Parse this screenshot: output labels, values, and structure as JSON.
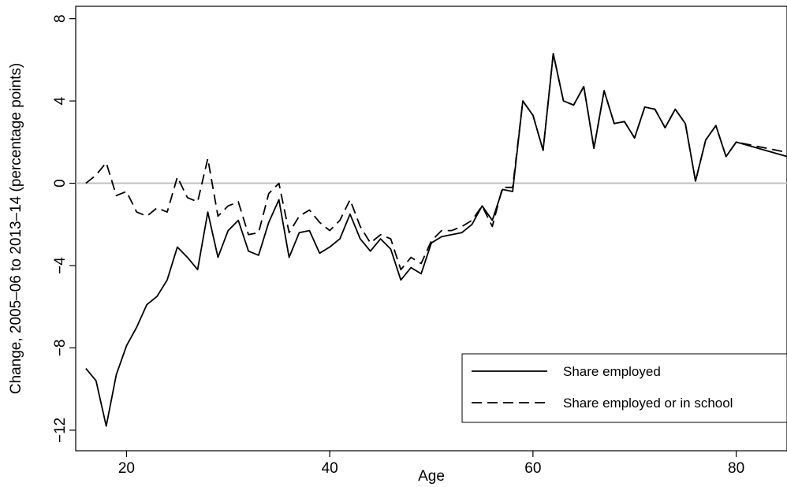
{
  "chart_data": {
    "type": "line",
    "title": "",
    "xlabel": "Age",
    "ylabel": "Change, 2005–06 to 2013–14 (percentage points)",
    "xlim": [
      15,
      85
    ],
    "ylim": [
      -13,
      8.6
    ],
    "xticks": [
      20,
      40,
      60,
      80
    ],
    "yticks": [
      -12,
      -8,
      -4,
      0,
      4,
      8
    ],
    "xtick_labels": [
      "20",
      "40",
      "60",
      "80"
    ],
    "ytick_labels": [
      "−12",
      "−8",
      "−4",
      "0",
      "4",
      "8"
    ],
    "reference_line_y": 0,
    "grid": false,
    "legend_position": "bottom-right",
    "series": [
      {
        "name": "Share employed",
        "style": "solid",
        "color": "#000000",
        "x": [
          16,
          17,
          18,
          19,
          20,
          21,
          22,
          23,
          24,
          25,
          26,
          27,
          28,
          29,
          30,
          31,
          32,
          33,
          34,
          35,
          36,
          37,
          38,
          39,
          40,
          41,
          42,
          43,
          44,
          45,
          46,
          47,
          48,
          49,
          50,
          51,
          52,
          53,
          54,
          55,
          56,
          57,
          58,
          59,
          60,
          61,
          62,
          63,
          64,
          65,
          66,
          67,
          68,
          69,
          70,
          71,
          72,
          73,
          74,
          75,
          76,
          77,
          78,
          79,
          80,
          85
        ],
        "values": [
          -9.0,
          -9.6,
          -11.8,
          -9.3,
          -7.9,
          -7.0,
          -5.9,
          -5.5,
          -4.7,
          -3.1,
          -3.6,
          -4.2,
          -1.4,
          -3.6,
          -2.3,
          -1.8,
          -3.3,
          -3.5,
          -1.9,
          -0.8,
          -3.6,
          -2.4,
          -2.3,
          -3.4,
          -3.1,
          -2.7,
          -1.5,
          -2.7,
          -3.3,
          -2.7,
          -3.2,
          -4.7,
          -4.1,
          -4.4,
          -2.9,
          -2.6,
          -2.5,
          -2.4,
          -2.0,
          -1.1,
          -1.8,
          -0.3,
          -0.4,
          4.0,
          3.3,
          1.6,
          6.3,
          4.0,
          3.8,
          4.7,
          1.7,
          4.5,
          2.9,
          3.0,
          2.2,
          3.7,
          3.6,
          2.7,
          3.6,
          2.9,
          0.1,
          2.1,
          2.8,
          1.3,
          2.0,
          1.3
        ]
      },
      {
        "name": "Share employed or in school",
        "style": "dashed",
        "color": "#000000",
        "x": [
          16,
          17,
          18,
          19,
          20,
          21,
          22,
          23,
          24,
          25,
          26,
          27,
          28,
          29,
          30,
          31,
          32,
          33,
          34,
          35,
          36,
          37,
          38,
          39,
          40,
          41,
          42,
          43,
          44,
          45,
          46,
          47,
          48,
          49,
          50,
          51,
          52,
          53,
          54,
          55,
          56,
          57,
          58,
          59,
          60,
          61,
          62,
          63,
          64,
          65,
          66,
          67,
          68,
          69,
          70,
          71,
          72,
          73,
          74,
          75,
          76,
          77,
          78,
          79,
          80,
          85
        ],
        "values": [
          0.0,
          0.4,
          1.0,
          -0.6,
          -0.4,
          -1.4,
          -1.6,
          -1.2,
          -1.4,
          0.3,
          -0.7,
          -0.9,
          1.2,
          -1.6,
          -1.1,
          -0.9,
          -2.5,
          -2.4,
          -0.5,
          0.0,
          -2.4,
          -1.6,
          -1.3,
          -1.9,
          -2.3,
          -1.8,
          -0.8,
          -2.1,
          -2.9,
          -2.5,
          -2.7,
          -4.2,
          -3.6,
          -3.9,
          -2.8,
          -2.3,
          -2.3,
          -2.1,
          -1.8,
          -1.1,
          -2.1,
          -0.2,
          -0.2,
          4.0,
          3.3,
          1.6,
          6.3,
          4.0,
          3.8,
          4.7,
          1.7,
          4.5,
          2.9,
          3.0,
          2.2,
          3.7,
          3.6,
          2.7,
          3.6,
          2.9,
          0.1,
          2.1,
          2.8,
          1.3,
          2.0,
          1.5
        ]
      }
    ]
  }
}
